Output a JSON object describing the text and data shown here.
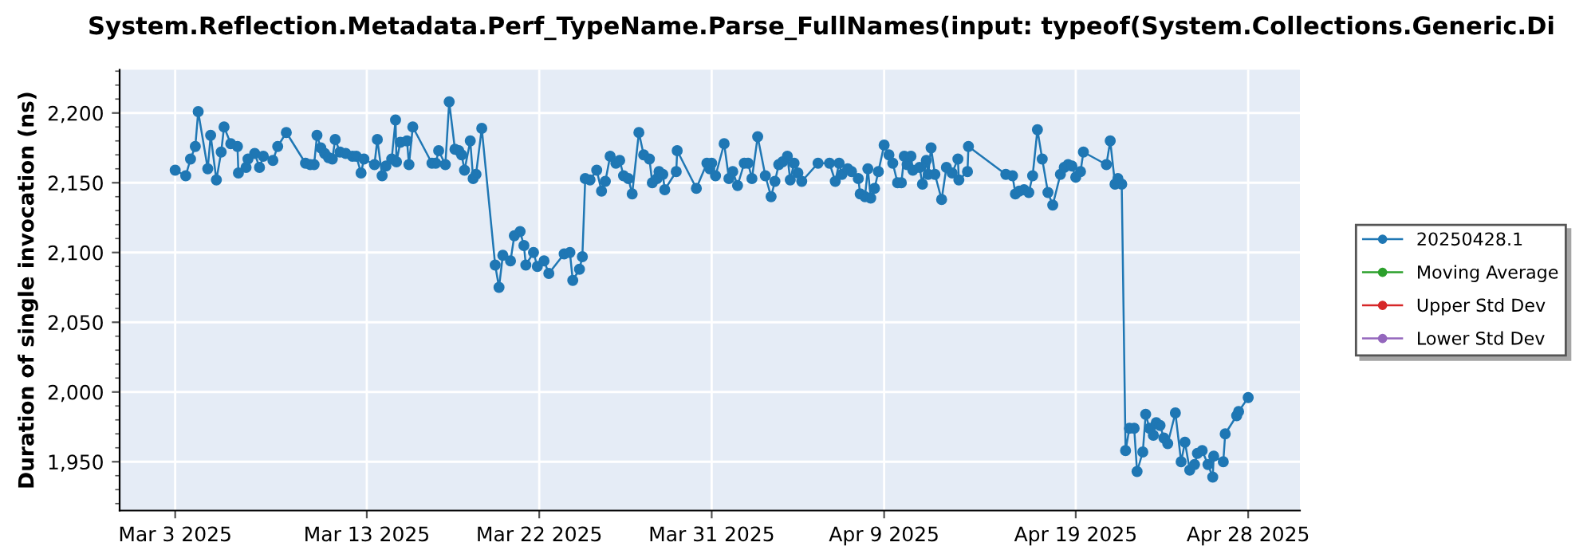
{
  "chart_data": {
    "type": "line",
    "title": "System.Reflection.Metadata.Perf_TypeName.Parse_FullNames(input: typeof(System.Collections.Generic.Di",
    "ylabel": "Duration of single invocation (ns)",
    "xlim": [
      "2025-02-28T02:24",
      "2025-04-30T16:48"
    ],
    "xticks": [
      {
        "value": "2025-03-03",
        "label": "Mar 3 2025"
      },
      {
        "value": "2025-03-13",
        "label": "Mar 13 2025"
      },
      {
        "value": "2025-03-22",
        "label": "Mar 22 2025"
      },
      {
        "value": "2025-03-31",
        "label": "Mar 31 2025"
      },
      {
        "value": "2025-04-09",
        "label": "Apr 9 2025"
      },
      {
        "value": "2025-04-19",
        "label": "Apr 19 2025"
      },
      {
        "value": "2025-04-28",
        "label": "Apr 28 2025"
      }
    ],
    "ylim": [
      1915,
      2231
    ],
    "yticks": [
      {
        "value": 1950,
        "label": "1,950"
      },
      {
        "value": 2000,
        "label": "2,000"
      },
      {
        "value": 2050,
        "label": "2,050"
      },
      {
        "value": 2100,
        "label": "2,100"
      },
      {
        "value": 2150,
        "label": "2,150"
      },
      {
        "value": 2200,
        "label": "2,200"
      }
    ],
    "grid": true,
    "legend": "right",
    "marker": "circle",
    "line_style": "solid",
    "series": [
      {
        "name": "20250428.1",
        "color": "#1f77b4",
        "x": [
          "2025-03-03T00:00",
          "2025-03-03T13:12",
          "2025-03-03T19:12",
          "2025-03-04T01:12",
          "2025-03-04T04:48",
          "2025-03-04T16:48",
          "2025-03-04T20:24",
          "2025-03-05T03:36",
          "2025-03-05T09:36",
          "2025-03-05T13:12",
          "2025-03-05T21:36",
          "2025-03-06T06:00",
          "2025-03-06T07:12",
          "2025-03-06T16:48",
          "2025-03-06T19:12",
          "2025-03-07T03:36",
          "2025-03-07T09:36",
          "2025-03-07T14:24",
          "2025-03-08T02:24",
          "2025-03-08T08:24",
          "2025-03-08T19:12",
          "2025-03-09T19:12",
          "2025-03-10T01:12",
          "2025-03-10T06:00",
          "2025-03-10T09:36",
          "2025-03-10T14:24",
          "2025-03-10T19:12",
          "2025-03-11T00:00",
          "2025-03-11T04:48",
          "2025-03-11T08:24",
          "2025-03-11T14:24",
          "2025-03-11T21:36",
          "2025-03-12T06:00",
          "2025-03-12T10:48",
          "2025-03-12T16:48",
          "2025-03-12T20:24",
          "2025-03-13T09:36",
          "2025-03-13T13:12",
          "2025-03-13T19:12",
          "2025-03-14T00:00",
          "2025-03-14T07:12",
          "2025-03-14T12:00",
          "2025-03-14T13:12",
          "2025-03-14T18:00",
          "2025-03-15T02:24",
          "2025-03-15T04:48",
          "2025-03-15T09:36",
          "2025-03-16T09:36",
          "2025-03-16T14:24",
          "2025-03-16T18:00",
          "2025-03-17T02:24",
          "2025-03-17T07:12",
          "2025-03-17T14:24",
          "2025-03-17T19:12",
          "2025-03-17T22:48",
          "2025-03-18T02:24",
          "2025-03-18T09:36",
          "2025-03-18T13:12",
          "2025-03-18T16:48",
          "2025-03-19T00:00",
          "2025-03-19T16:48",
          "2025-03-19T21:36",
          "2025-03-20T02:24",
          "2025-03-20T12:00",
          "2025-03-20T16:48",
          "2025-03-21T00:00",
          "2025-03-21T04:48",
          "2025-03-21T07:12",
          "2025-03-21T16:48",
          "2025-03-21T21:36",
          "2025-03-22T06:00",
          "2025-03-22T12:00",
          "2025-03-23T07:12",
          "2025-03-23T14:24",
          "2025-03-23T18:00",
          "2025-03-24T02:24",
          "2025-03-24T06:00",
          "2025-03-24T09:36",
          "2025-03-24T15:36",
          "2025-03-25T00:00",
          "2025-03-25T06:00",
          "2025-03-25T10:48",
          "2025-03-25T16:48",
          "2025-03-26T00:00",
          "2025-03-26T04:48",
          "2025-03-26T09:36",
          "2025-03-26T15:36",
          "2025-03-26T20:24",
          "2025-03-27T04:48",
          "2025-03-27T10:48",
          "2025-03-27T18:00",
          "2025-03-27T21:36",
          "2025-03-28T03:36",
          "2025-03-28T06:00",
          "2025-03-28T10:48",
          "2025-03-28T13:12",
          "2025-03-29T03:36",
          "2025-03-29T04:48",
          "2025-03-30T04:48",
          "2025-03-30T18:00",
          "2025-03-30T21:36",
          "2025-03-31T00:00",
          "2025-03-31T04:48",
          "2025-03-31T15:36",
          "2025-03-31T21:36",
          "2025-04-01T02:24",
          "2025-04-01T08:24",
          "2025-04-01T16:48",
          "2025-04-01T21:36",
          "2025-04-02T02:24",
          "2025-04-02T09:36",
          "2025-04-02T19:12",
          "2025-04-03T02:24",
          "2025-04-03T07:12",
          "2025-04-03T12:00",
          "2025-04-03T16:48",
          "2025-04-03T22:48",
          "2025-04-04T02:24",
          "2025-04-04T07:12",
          "2025-04-04T12:00",
          "2025-04-04T16:48",
          "2025-04-05T13:12",
          "2025-04-06T03:36",
          "2025-04-06T10:48",
          "2025-04-06T15:36",
          "2025-04-06T19:12",
          "2025-04-07T02:24",
          "2025-04-07T07:12",
          "2025-04-07T15:36",
          "2025-04-07T18:00",
          "2025-04-08T00:00",
          "2025-04-08T03:36",
          "2025-04-08T07:12",
          "2025-04-08T12:00",
          "2025-04-08T16:48",
          "2025-04-09T00:00",
          "2025-04-09T06:00",
          "2025-04-09T10:48",
          "2025-04-09T16:48",
          "2025-04-09T21:36",
          "2025-04-10T01:12",
          "2025-04-10T04:48",
          "2025-04-10T09:36",
          "2025-04-10T12:00",
          "2025-04-10T20:24",
          "2025-04-11T00:00",
          "2025-04-11T04:48",
          "2025-04-11T07:12",
          "2025-04-11T10:48",
          "2025-04-11T15:36",
          "2025-04-12T00:00",
          "2025-04-12T06:00",
          "2025-04-12T13:12",
          "2025-04-12T20:24",
          "2025-04-12T21:36",
          "2025-04-13T08:24",
          "2025-04-13T09:36",
          "2025-04-15T08:24",
          "2025-04-15T16:48",
          "2025-04-15T20:24",
          "2025-04-16T01:12",
          "2025-04-16T07:12",
          "2025-04-16T13:12",
          "2025-04-16T18:00",
          "2025-04-17T00:00",
          "2025-04-17T06:00",
          "2025-04-17T13:12",
          "2025-04-17T19:12",
          "2025-04-18T04:48",
          "2025-04-18T09:36",
          "2025-04-18T14:24",
          "2025-04-18T19:12",
          "2025-04-19T00:00",
          "2025-04-19T06:00",
          "2025-04-19T09:36",
          "2025-04-20T14:24",
          "2025-04-20T19:12",
          "2025-04-21T01:12",
          "2025-04-21T04:48",
          "2025-04-21T09:36",
          "2025-04-21T14:24",
          "2025-04-21T19:12",
          "2025-04-22T01:12",
          "2025-04-22T04:48",
          "2025-04-22T12:00",
          "2025-04-22T15:36",
          "2025-04-22T20:24",
          "2025-04-23T01:12",
          "2025-04-23T04:48",
          "2025-04-23T09:36",
          "2025-04-23T14:24",
          "2025-04-23T19:12",
          "2025-04-24T04:48",
          "2025-04-24T12:00",
          "2025-04-24T16:48",
          "2025-04-24T22:48",
          "2025-04-25T04:48",
          "2025-04-25T08:24",
          "2025-04-25T14:24",
          "2025-04-25T21:36",
          "2025-04-26T03:36",
          "2025-04-26T04:48",
          "2025-04-26T16:48",
          "2025-04-26T19:12",
          "2025-04-27T09:36",
          "2025-04-27T12:00",
          "2025-04-28T00:00"
        ],
        "values": [
          2159,
          2155,
          2167,
          2176,
          2201,
          2160,
          2184,
          2152,
          2172,
          2190,
          2178,
          2176,
          2157,
          2161,
          2167,
          2171,
          2161,
          2169,
          2166,
          2176,
          2186,
          2164,
          2163,
          2163,
          2184,
          2175,
          2171,
          2168,
          2167,
          2181,
          2172,
          2171,
          2169,
          2169,
          2157,
          2167,
          2163,
          2181,
          2155,
          2162,
          2167,
          2195,
          2165,
          2179,
          2180,
          2163,
          2190,
          2164,
          2164,
          2173,
          2163,
          2208,
          2174,
          2173,
          2170,
          2159,
          2180,
          2153,
          2156,
          2189,
          2091,
          2075,
          2098,
          2094,
          2112,
          2115,
          2105,
          2091,
          2100,
          2090,
          2094,
          2085,
          2099,
          2100,
          2080,
          2088,
          2097,
          2153,
          2152,
          2159,
          2144,
          2151,
          2169,
          2164,
          2166,
          2155,
          2153,
          2142,
          2186,
          2170,
          2167,
          2150,
          2153,
          2158,
          2156,
          2145,
          2158,
          2173,
          2146,
          2164,
          2160,
          2164,
          2155,
          2178,
          2153,
          2158,
          2148,
          2164,
          2164,
          2153,
          2183,
          2155,
          2140,
          2151,
          2163,
          2165,
          2169,
          2152,
          2164,
          2157,
          2151,
          2164,
          2164,
          2151,
          2164,
          2156,
          2160,
          2158,
          2153,
          2142,
          2140,
          2160,
          2139,
          2146,
          2158,
          2177,
          2170,
          2164,
          2150,
          2150,
          2169,
          2163,
          2169,
          2159,
          2161,
          2149,
          2166,
          2156,
          2175,
          2156,
          2138,
          2161,
          2157,
          2167,
          2152,
          2158,
          2176,
          2156,
          2155,
          2142,
          2144,
          2145,
          2143,
          2155,
          2188,
          2167,
          2143,
          2134,
          2156,
          2161,
          2163,
          2162,
          2154,
          2158,
          2172,
          2163,
          2180,
          2149,
          2153,
          2149,
          1958,
          1974,
          1974,
          1943,
          1957,
          1984,
          1974,
          1969,
          1978,
          1976,
          1967,
          1963,
          1985,
          1950,
          1964,
          1944,
          1948,
          1956,
          1958,
          1948,
          1939,
          1954,
          1950,
          1970,
          1983,
          1986,
          1996
        ]
      },
      {
        "name": "Moving Average",
        "color": "#2ca02c"
      },
      {
        "name": "Upper Std Dev",
        "color": "#d62728"
      },
      {
        "name": "Lower Std Dev",
        "color": "#9467bd"
      }
    ]
  }
}
